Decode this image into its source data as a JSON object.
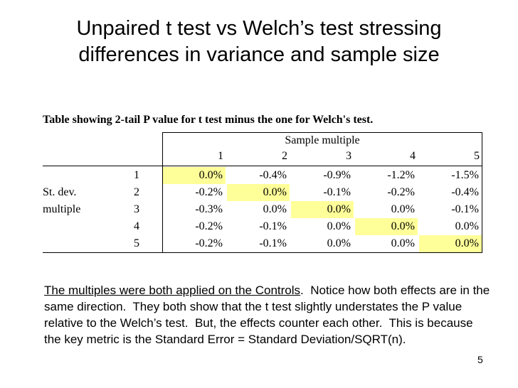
{
  "title": "Unpaired t test vs Welch’s test stressing differences in variance and sample size",
  "table": {
    "caption": "Table showing 2-tail P value for t test minus the one for Welch's test.",
    "group_header": "Sample multiple",
    "columns": [
      "1",
      "2",
      "3",
      "4",
      "5"
    ],
    "rows": [
      {
        "number": "1",
        "cells": [
          "0.0%",
          "-0.4%",
          "-0.9%",
          "-1.2%",
          "-1.5%"
        ]
      },
      {
        "label": "St. dev.",
        "number": "2",
        "cells": [
          "-0.2%",
          "0.0%",
          "-0.1%",
          "-0.2%",
          "-0.4%"
        ]
      },
      {
        "label": "multiple",
        "number": "3",
        "cells": [
          "-0.3%",
          "0.0%",
          "0.0%",
          "0.0%",
          "-0.1%"
        ]
      },
      {
        "number": "4",
        "cells": [
          "-0.2%",
          "-0.1%",
          "0.0%",
          "0.0%",
          "0.0%"
        ]
      },
      {
        "number": "5",
        "cells": [
          "-0.2%",
          "-0.1%",
          "0.0%",
          "0.0%",
          "0.0%"
        ]
      }
    ]
  },
  "note": {
    "lead": "The multiples were both applied on the Controls",
    "body": ".  Notice how both effects are in the same direction.  They both show that the t test slightly understates the P value relative to the Welch’s test.  But, the effects counter each other.  This is because the key metric is the Standard Error = Standard Deviation/SQRT(n)."
  },
  "page_number": "5"
}
